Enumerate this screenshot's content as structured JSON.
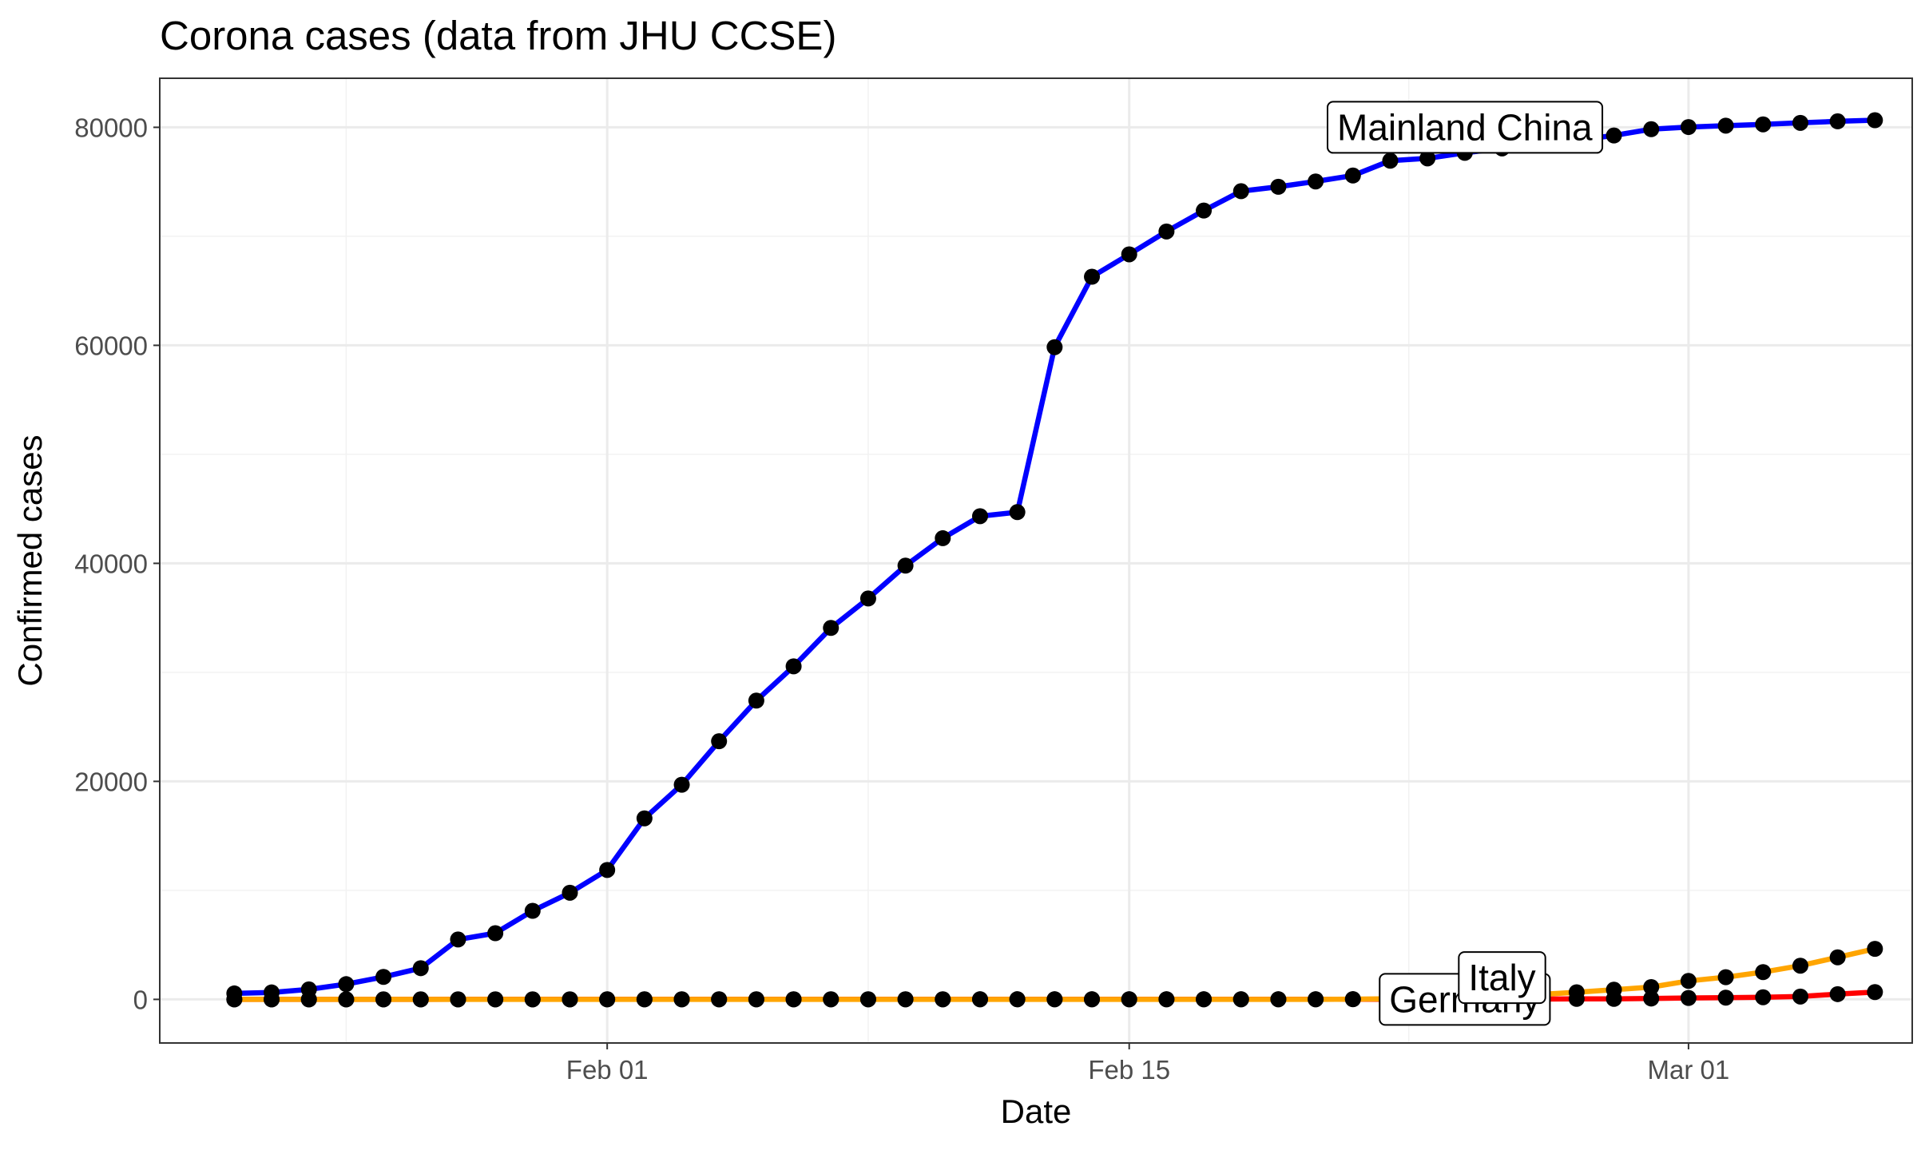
{
  "chart_data": {
    "type": "line",
    "title": "Corona cases (data from JHU CCSE)",
    "xlabel": "Date",
    "ylabel": "Confirmed cases",
    "x": [
      "2020-01-22",
      "2020-01-23",
      "2020-01-24",
      "2020-01-25",
      "2020-01-26",
      "2020-01-27",
      "2020-01-28",
      "2020-01-29",
      "2020-01-30",
      "2020-01-31",
      "2020-02-01",
      "2020-02-02",
      "2020-02-03",
      "2020-02-04",
      "2020-02-05",
      "2020-02-06",
      "2020-02-07",
      "2020-02-08",
      "2020-02-09",
      "2020-02-10",
      "2020-02-11",
      "2020-02-12",
      "2020-02-13",
      "2020-02-14",
      "2020-02-15",
      "2020-02-16",
      "2020-02-17",
      "2020-02-18",
      "2020-02-19",
      "2020-02-20",
      "2020-02-21",
      "2020-02-22",
      "2020-02-23",
      "2020-02-24",
      "2020-02-25",
      "2020-02-26",
      "2020-02-27",
      "2020-02-28",
      "2020-02-29",
      "2020-03-01",
      "2020-03-02",
      "2020-03-03",
      "2020-03-04",
      "2020-03-05",
      "2020-03-06"
    ],
    "series": [
      {
        "name": "Mainland China",
        "color": "#0000ff",
        "values": [
          547,
          639,
          916,
          1399,
          2062,
          2863,
          5494,
          6070,
          8124,
          9783,
          11871,
          16607,
          19693,
          23680,
          27409,
          30553,
          34075,
          36778,
          39790,
          42306,
          44327,
          44699,
          59832,
          66292,
          68347,
          70446,
          72364,
          74139,
          74546,
          75033,
          75577,
          76936,
          77150,
          77658,
          78064,
          78497,
          78824,
          79251,
          79826,
          80026,
          80151,
          80270,
          80409,
          80552,
          80651
        ]
      },
      {
        "name": "Italy",
        "color": "#ffa500",
        "values": [
          0,
          0,
          0,
          0,
          0,
          0,
          0,
          0,
          0,
          2,
          2,
          2,
          2,
          2,
          2,
          2,
          3,
          3,
          3,
          3,
          3,
          3,
          3,
          3,
          3,
          3,
          3,
          3,
          3,
          3,
          20,
          62,
          155,
          229,
          322,
          453,
          655,
          888,
          1128,
          1694,
          2036,
          2502,
          3089,
          3858,
          4636
        ]
      },
      {
        "name": "Germany",
        "color": "#ff0000",
        "values": [
          0,
          0,
          0,
          0,
          0,
          0,
          4,
          4,
          4,
          5,
          8,
          10,
          12,
          12,
          12,
          12,
          13,
          13,
          14,
          14,
          16,
          16,
          16,
          16,
          16,
          16,
          16,
          16,
          16,
          16,
          16,
          16,
          16,
          16,
          17,
          27,
          46,
          48,
          79,
          130,
          159,
          196,
          262,
          482,
          670
        ]
      }
    ],
    "x_ticks": [
      {
        "date": "2020-02-01",
        "label": "Feb 01"
      },
      {
        "date": "2020-02-15",
        "label": "Feb 15"
      },
      {
        "date": "2020-03-01",
        "label": "Mar 01"
      }
    ],
    "y_ticks": [
      0,
      20000,
      40000,
      60000,
      80000
    ],
    "labels": [
      {
        "text": "Mainland China",
        "series": "Mainland China",
        "date": "2020-02-24",
        "value": 80000
      },
      {
        "text": "Italy",
        "series": "Italy",
        "date": "2020-02-25",
        "value": 2000
      },
      {
        "text": "Germany",
        "series": "Germany",
        "date": "2020-02-24",
        "value": 0
      }
    ],
    "marker_color": "#000000",
    "xlim": [
      "2020-01-20",
      "2020-03-07"
    ],
    "ylim": [
      -4000,
      84500
    ],
    "grid": true,
    "legend": "none"
  }
}
